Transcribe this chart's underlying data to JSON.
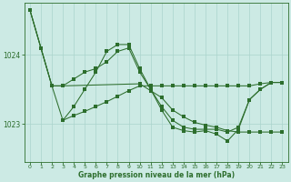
{
  "xlabel": "Graphe pression niveau de la mer (hPa)",
  "bg_color": "#cceae4",
  "grid_color": "#aad4cc",
  "line_color": "#2d6e2d",
  "xlim": [
    -0.5,
    23.5
  ],
  "ylim": [
    1022.45,
    1024.75
  ],
  "yticks": [
    1023,
    1024
  ],
  "xticks": [
    0,
    1,
    2,
    3,
    4,
    5,
    6,
    7,
    8,
    9,
    10,
    11,
    12,
    13,
    14,
    15,
    16,
    17,
    18,
    19,
    20,
    21,
    22,
    23
  ],
  "lines": [
    {
      "x": [
        0,
        1,
        2,
        3,
        4,
        5,
        6,
        7,
        8,
        9,
        10,
        11,
        12,
        13,
        14,
        15,
        16,
        17,
        18,
        19,
        20,
        21,
        22,
        23
      ],
      "y": [
        1024.65,
        1024.1,
        1023.55,
        1023.55,
        1023.65,
        1023.75,
        1023.8,
        1023.9,
        1024.05,
        1024.1,
        1023.75,
        1023.5,
        1023.25,
        1023.05,
        1022.95,
        1022.92,
        1022.92,
        1022.92,
        1022.88,
        1022.95,
        1023.35,
        1023.5,
        1023.6,
        1023.6
      ]
    },
    {
      "x": [
        0,
        1,
        2,
        3,
        4,
        5,
        6,
        7,
        8,
        9,
        10,
        11,
        12,
        13,
        14,
        15,
        16,
        17,
        18,
        19,
        20,
        21,
        22,
        23
      ],
      "y": [
        1024.65,
        1024.1,
        1023.55,
        1023.05,
        1023.25,
        1023.5,
        1023.75,
        1024.05,
        1024.15,
        1024.15,
        1023.8,
        1023.5,
        1023.2,
        1022.95,
        1022.9,
        1022.88,
        1022.9,
        1022.85,
        1022.75,
        1022.92,
        1023.35,
        1023.5,
        1023.6,
        1023.6
      ]
    },
    {
      "x": [
        0,
        1,
        2,
        3,
        10,
        11,
        12,
        13,
        14,
        15,
        16,
        17,
        18,
        19,
        20,
        21,
        22,
        23
      ],
      "y": [
        1024.65,
        1024.1,
        1023.55,
        1023.55,
        1023.58,
        1023.48,
        1023.38,
        1023.2,
        1023.1,
        1023.02,
        1022.98,
        1022.95,
        1022.9,
        1022.88,
        1022.88,
        1022.88,
        1022.88,
        1022.88
      ]
    },
    {
      "x": [
        3,
        4,
        5,
        6,
        7,
        8,
        9,
        10,
        11,
        12,
        13,
        14,
        15,
        16,
        17,
        18,
        19,
        20,
        21,
        22,
        23
      ],
      "y": [
        1023.05,
        1023.12,
        1023.18,
        1023.25,
        1023.32,
        1023.4,
        1023.48,
        1023.55,
        1023.55,
        1023.55,
        1023.55,
        1023.55,
        1023.55,
        1023.55,
        1023.55,
        1023.55,
        1023.55,
        1023.55,
        1023.58,
        1023.6,
        1023.6
      ]
    }
  ]
}
